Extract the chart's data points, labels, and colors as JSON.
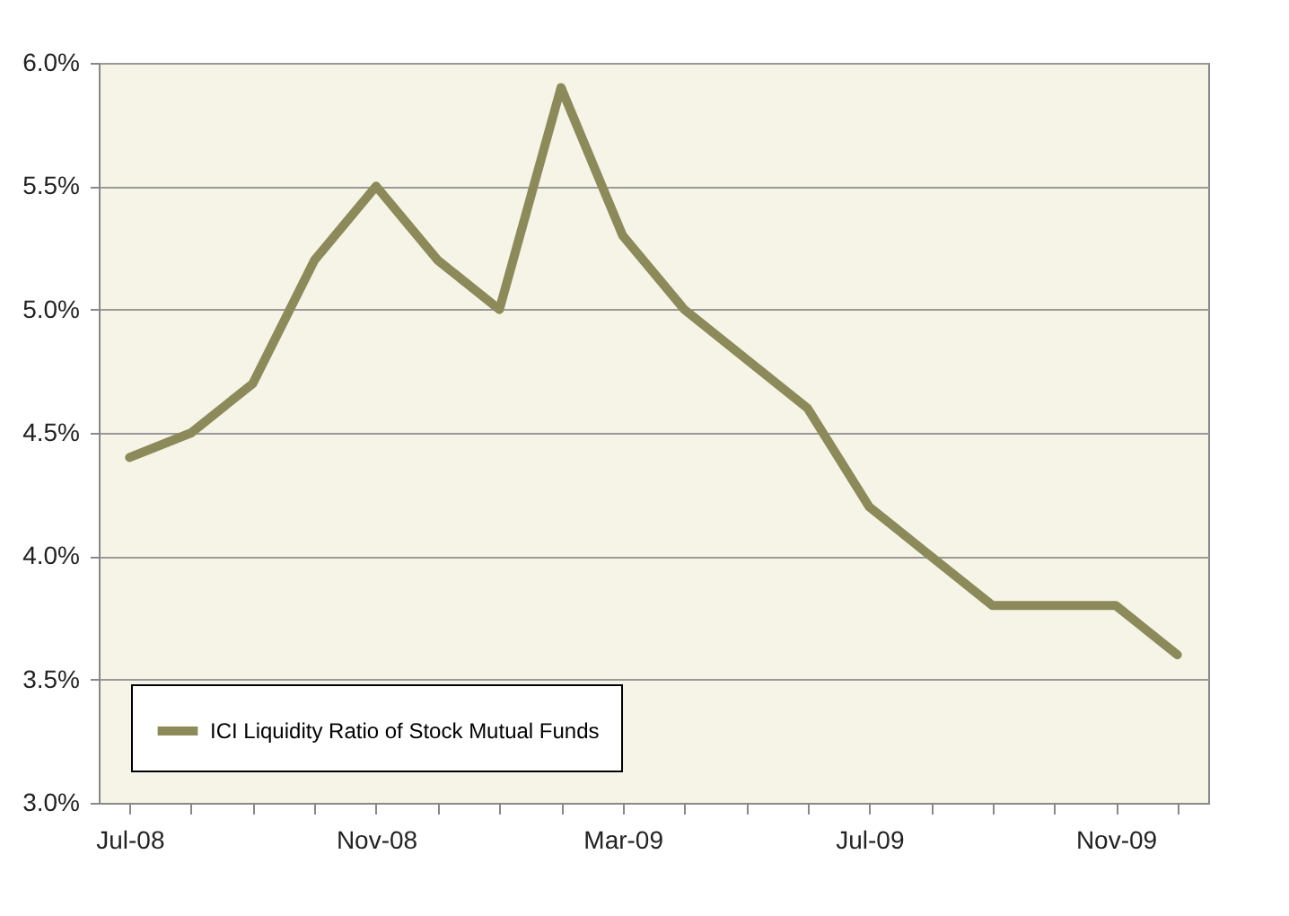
{
  "chart_data": {
    "type": "line",
    "categories": [
      "Jul-08",
      null,
      null,
      null,
      "Nov-08",
      null,
      null,
      null,
      "Mar-09",
      null,
      null,
      null,
      "Jul-09",
      null,
      null,
      null,
      "Nov-09",
      null
    ],
    "series": [
      {
        "name": "ICI Liquidity Ratio of Stock Mutual Funds",
        "color": "#8c8a5a",
        "values": [
          4.4,
          4.5,
          4.7,
          5.2,
          5.5,
          5.2,
          5.0,
          5.9,
          5.3,
          5.0,
          4.8,
          4.6,
          4.2,
          4.0,
          3.8,
          3.8,
          3.8,
          3.6
        ]
      }
    ],
    "ylim": [
      3,
      6
    ],
    "yticks": [
      {
        "value": 3,
        "label": "3.0%"
      },
      {
        "value": 3.5,
        "label": "3.5%"
      },
      {
        "value": 4,
        "label": "4.0%"
      },
      {
        "value": 4.5,
        "label": "4.5%"
      },
      {
        "value": 5,
        "label": "5.0%"
      },
      {
        "value": 5.5,
        "label": "5.5%"
      },
      {
        "value": 6,
        "label": "6.0%"
      }
    ],
    "grid": "y",
    "legend": "bottom left",
    "marker": "none",
    "line_style": "solid"
  }
}
